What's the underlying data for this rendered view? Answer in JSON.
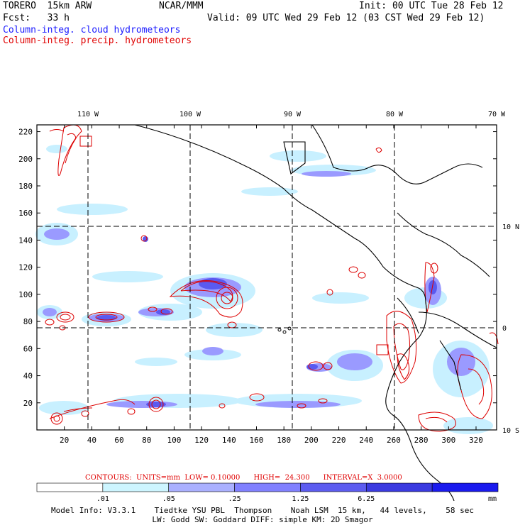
{
  "header": {
    "model": "TORERO  15km ARW",
    "org": "NCAR/MMM",
    "init": "Init: 00 UTC Tue 28 Feb 12",
    "fcst": "Fcst:   33 h",
    "valid": "Valid: 09 UTC Wed 29 Feb 12 (03 CST Wed 29 Feb 12)",
    "field_cloud": "Column-integ. cloud hydrometeors",
    "field_precip": "Column-integ. precip. hydrometeors"
  },
  "map": {
    "lon_labels": [
      "110 W",
      "100 W",
      "90 W",
      "80 W",
      "70 W"
    ],
    "lat_labels": [
      "10 N",
      "0",
      "10 S"
    ],
    "x_ticks": [
      "20",
      "40",
      "60",
      "80",
      "100",
      "120",
      "140",
      "160",
      "180",
      "200",
      "220",
      "240",
      "260",
      "280",
      "300",
      "320"
    ],
    "y_ticks": [
      "20",
      "40",
      "60",
      "80",
      "100",
      "120",
      "140",
      "160",
      "180",
      "200",
      "220"
    ],
    "grid_x_range": [
      0,
      335
    ],
    "grid_y_range": [
      0,
      225
    ],
    "colors": {
      "cloud_light": "#c8f0ff",
      "cloud_mid": "#9999ff",
      "cloud_dark": "#5555ee",
      "precip": "#dd0000",
      "coast": "#000000"
    }
  },
  "contour_note": "CONTOURS:  UNITS=mm  LOW= 0.10000      HIGH=  24.300      INTERVAL=X  3.0000",
  "colorbar": {
    "levels": [
      ".01",
      ".05",
      ".25",
      "1.25",
      "6.25"
    ],
    "unit": "mm",
    "colors": [
      "#ffffff",
      "#cdf5ff",
      "#aab0ff",
      "#8080ff",
      "#5c5cf0",
      "#3a3ae0",
      "#1a1aee"
    ]
  },
  "footer": {
    "line1": "Model Info: V3.3.1    Tiedtke YSU PBL  Thompson    Noah LSM  15 km,   44 levels,    58 sec",
    "line2": "LW: Godd SW: Goddard DIFF: simple KM: 2D Smagor"
  }
}
